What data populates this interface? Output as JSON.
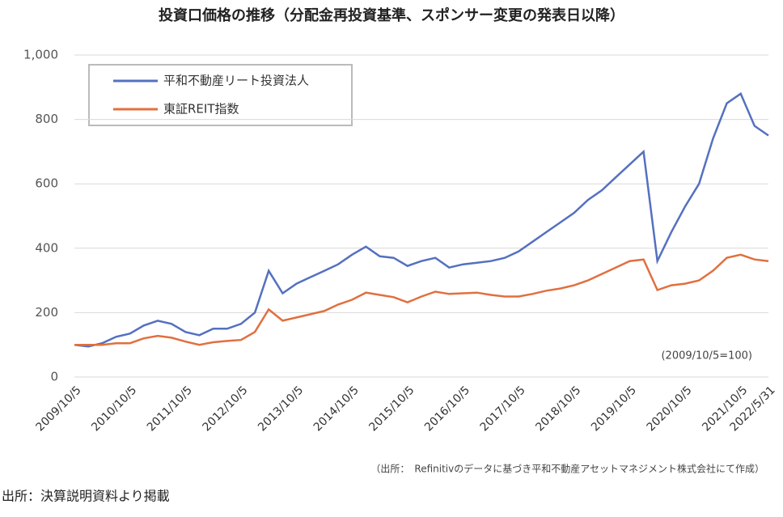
{
  "chart_data": {
    "type": "line",
    "title": "投資口価格の推移（分配金再投資基準、スポンサー変更の発表日以降）",
    "categories": [
      "2009/10/5",
      null,
      null,
      null,
      "2010/10/5",
      null,
      null,
      null,
      "2011/10/5",
      null,
      null,
      null,
      "2012/10/5",
      null,
      null,
      null,
      "2013/10/5",
      null,
      null,
      null,
      "2014/10/5",
      null,
      null,
      null,
      "2015/10/5",
      null,
      null,
      null,
      "2016/10/5",
      null,
      null,
      null,
      "2017/10/5",
      null,
      null,
      null,
      "2018/10/5",
      null,
      null,
      null,
      "2019/10/5",
      null,
      null,
      null,
      "2020/10/5",
      null,
      null,
      null,
      "2021/10/5",
      null,
      "2022/5/31"
    ],
    "series": [
      {
        "name": "平和不動産リート投資法人",
        "color": "#5470c0",
        "values": [
          100,
          95,
          105,
          125,
          135,
          160,
          175,
          165,
          140,
          130,
          150,
          150,
          165,
          200,
          330,
          260,
          290,
          310,
          330,
          350,
          380,
          405,
          375,
          370,
          345,
          360,
          370,
          340,
          350,
          355,
          360,
          370,
          390,
          420,
          450,
          480,
          510,
          550,
          580,
          620,
          660,
          700,
          360,
          450,
          530,
          600,
          740,
          850,
          880,
          780,
          750
        ]
      },
      {
        "name": "東証REIT指数",
        "color": "#e0703f",
        "values": [
          100,
          100,
          100,
          105,
          105,
          120,
          128,
          122,
          110,
          100,
          108,
          112,
          115,
          140,
          210,
          175,
          185,
          195,
          205,
          225,
          240,
          262,
          255,
          248,
          232,
          250,
          265,
          258,
          260,
          262,
          255,
          250,
          250,
          258,
          268,
          275,
          285,
          300,
          320,
          340,
          360,
          365,
          270,
          285,
          290,
          300,
          330,
          370,
          380,
          365,
          360
        ]
      }
    ],
    "ylim": [
      0,
      1000
    ],
    "yticks": [
      0,
      200,
      400,
      600,
      800,
      {
        "value": 1000,
        "label": "1,000"
      }
    ],
    "grid": true,
    "legend": "top-left",
    "annotation": "(2009/10/5=100)",
    "source_note": "（出所：　Refinitivのデータに基づき平和不動産アセットマネジメント株式会社にて作成）",
    "footer": "出所：決算説明資料より掲載"
  }
}
